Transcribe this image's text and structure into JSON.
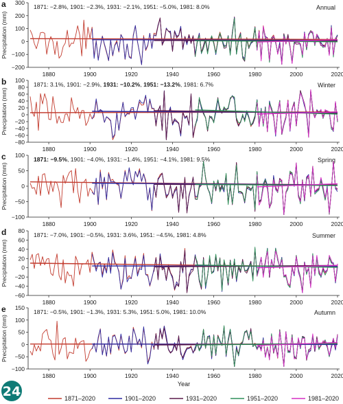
{
  "figure": {
    "x_axis_label": "Year",
    "y_axis_label": "Precipitation (mm)",
    "x_ticks": [
      1880,
      1900,
      1920,
      1940,
      1960,
      1980,
      2000,
      2020
    ],
    "logo_text": "24"
  },
  "legend": [
    {
      "label": "1871–2020",
      "color": "#c23b2e"
    },
    {
      "label": "1901–2020",
      "color": "#2b2aa0"
    },
    {
      "label": "1931–2020",
      "color": "#5a1a4a"
    },
    {
      "label": "1951–2020",
      "color": "#2f8f5a"
    },
    {
      "label": "1981–2020",
      "color": "#d62fc4"
    }
  ],
  "chart_data": [
    {
      "type": "line",
      "letter": "a",
      "season": "Annual",
      "ylim": [
        -200,
        300
      ],
      "yticks": [
        -200,
        -100,
        0,
        100,
        200,
        300
      ],
      "annotation": [
        {
          "text": "1871: −2.8%",
          "bold": false
        },
        {
          "text": "1901: −2.3%",
          "bold": false
        },
        {
          "text": "1931: −2.1%",
          "bold": false
        },
        {
          "text": "1951: −5.0%",
          "bold": false
        },
        {
          "text": "1981: 8.0%",
          "bold": false
        }
      ],
      "trends": [
        {
          "start": 1871,
          "end": 2020,
          "y0": 22,
          "y1": 16
        },
        {
          "start": 1901,
          "end": 2020,
          "y0": 14,
          "y1": 9
        },
        {
          "start": 1931,
          "end": 2020,
          "y0": 8,
          "y1": 4
        },
        {
          "start": 1951,
          "end": 2020,
          "y0": 6,
          "y1": -2
        },
        {
          "start": 1981,
          "end": 2020,
          "y0": -4,
          "y1": 14
        }
      ],
      "series_amplitude": 70
    },
    {
      "type": "line",
      "letter": "b",
      "season": "Winter",
      "ylim": [
        -80,
        100
      ],
      "yticks": [
        -80,
        -60,
        -40,
        -20,
        0,
        20,
        40,
        60,
        80,
        100
      ],
      "annotation": [
        {
          "text": "1871: 3.1%",
          "bold": false
        },
        {
          "text": "1901: −2.9%",
          "bold": false
        },
        {
          "text": "1931: −10.2%",
          "bold": true
        },
        {
          "text": "1951: −13.2%",
          "bold": true
        },
        {
          "text": "1981: 6.7%",
          "bold": false
        }
      ],
      "trends": [
        {
          "start": 1871,
          "end": 2020,
          "y0": 6,
          "y1": 8
        },
        {
          "start": 1901,
          "end": 2020,
          "y0": 10,
          "y1": 6
        },
        {
          "start": 1931,
          "end": 2020,
          "y0": 12,
          "y1": 4
        },
        {
          "start": 1951,
          "end": 2020,
          "y0": 14,
          "y1": 2
        },
        {
          "start": 1981,
          "end": 2020,
          "y0": 2,
          "y1": 8
        }
      ],
      "series_amplitude": 30
    },
    {
      "type": "line",
      "letter": "c",
      "season": "Spring",
      "ylim": [
        -100,
        100
      ],
      "yticks": [
        -100,
        -50,
        0,
        50,
        100
      ],
      "annotation": [
        {
          "text": "1871: −9.5%",
          "bold": true
        },
        {
          "text": "1901: −4.0%",
          "bold": false
        },
        {
          "text": "1931: −1.4%",
          "bold": false
        },
        {
          "text": "1951: −4.1%",
          "bold": false
        },
        {
          "text": "1981: 9.5%",
          "bold": false
        }
      ],
      "trends": [
        {
          "start": 1871,
          "end": 2020,
          "y0": 14,
          "y1": 4
        },
        {
          "start": 1901,
          "end": 2020,
          "y0": 10,
          "y1": 4
        },
        {
          "start": 1931,
          "end": 2020,
          "y0": 6,
          "y1": 4
        },
        {
          "start": 1951,
          "end": 2020,
          "y0": 6,
          "y1": 2
        },
        {
          "start": 1981,
          "end": 2020,
          "y0": -2,
          "y1": 8
        }
      ],
      "series_amplitude": 35
    },
    {
      "type": "line",
      "letter": "d",
      "season": "Summer",
      "ylim": [
        -60,
        80
      ],
      "yticks": [
        -60,
        -40,
        -20,
        0,
        20,
        40,
        60,
        80
      ],
      "annotation": [
        {
          "text": "1871: −7.0%",
          "bold": false
        },
        {
          "text": "1901: −0.5%",
          "bold": false
        },
        {
          "text": "1931: 3.6%",
          "bold": false
        },
        {
          "text": "1951: −4.5%",
          "bold": false
        },
        {
          "text": "1981: 4.8%",
          "bold": false
        }
      ],
      "trends": [
        {
          "start": 1871,
          "end": 2020,
          "y0": 10,
          "y1": 2
        },
        {
          "start": 1901,
          "end": 2020,
          "y0": 4,
          "y1": 3
        },
        {
          "start": 1931,
          "end": 2020,
          "y0": 2,
          "y1": 5
        },
        {
          "start": 1951,
          "end": 2020,
          "y0": 6,
          "y1": 1
        },
        {
          "start": 1981,
          "end": 2020,
          "y0": 0,
          "y1": 5
        }
      ],
      "series_amplitude": 22
    },
    {
      "type": "line",
      "letter": "e",
      "season": "Autumn",
      "ylim": [
        -100,
        150
      ],
      "yticks": [
        -100,
        -50,
        0,
        50,
        100,
        150
      ],
      "annotation": [
        {
          "text": "1871: −0.5%",
          "bold": false
        },
        {
          "text": "1901: −1.3%",
          "bold": false
        },
        {
          "text": "1931: 5.3%",
          "bold": false
        },
        {
          "text": "1951: 5.0%",
          "bold": false
        },
        {
          "text": "1981: 10.0%",
          "bold": false
        }
      ],
      "trends": [
        {
          "start": 1871,
          "end": 2020,
          "y0": 2,
          "y1": 1
        },
        {
          "start": 1901,
          "end": 2020,
          "y0": 2,
          "y1": 0
        },
        {
          "start": 1931,
          "end": 2020,
          "y0": -2,
          "y1": 4
        },
        {
          "start": 1951,
          "end": 2020,
          "y0": -2,
          "y1": 4
        },
        {
          "start": 1981,
          "end": 2020,
          "y0": -4,
          "y1": 8
        }
      ],
      "series_amplitude": 38
    }
  ]
}
